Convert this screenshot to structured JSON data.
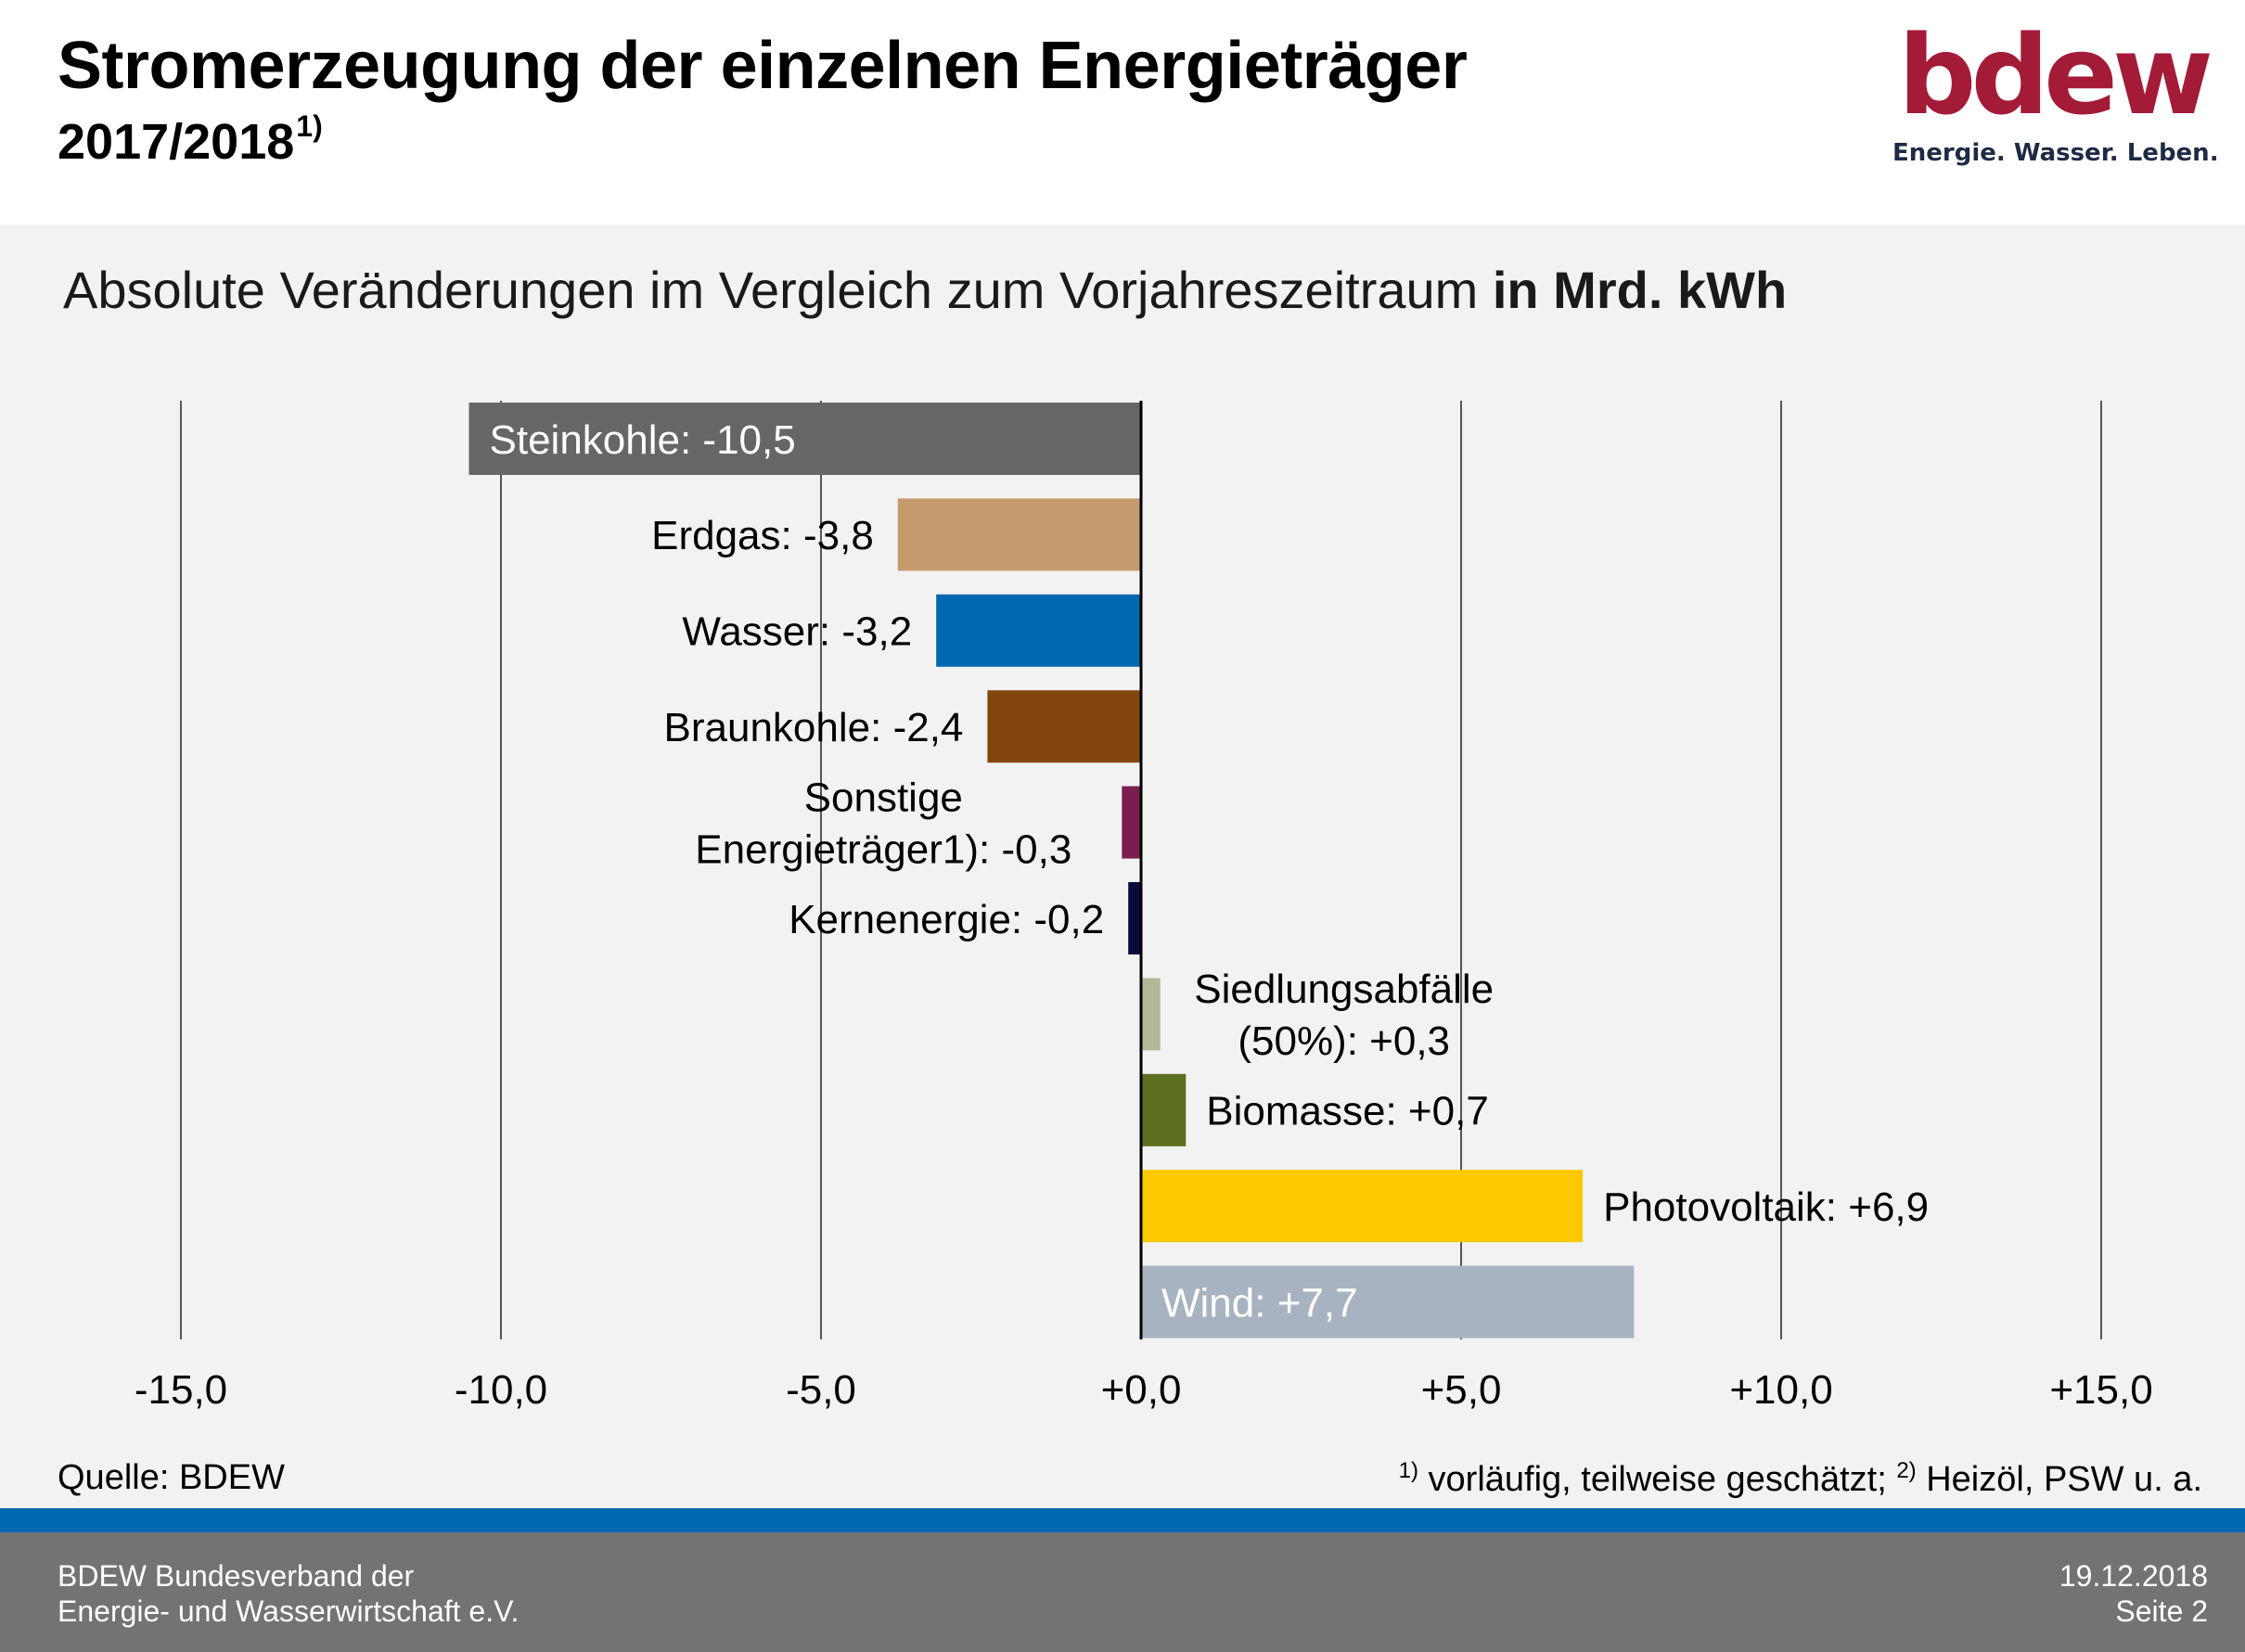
{
  "header": {
    "title": "Stromerzeugung der einzelnen Energieträger",
    "subtitle": "2017/2018",
    "subtitle_footnote": "1)",
    "logo_word": "bdew",
    "logo_tagline": "Energie. Wasser. Leben."
  },
  "caption": {
    "text": "Absolute Veränderungen im Vergleich zum Vorjahreszeitraum ",
    "unit": "in Mrd. kWh"
  },
  "chart_data": {
    "type": "bar",
    "orientation": "horizontal",
    "categories": [
      "Steinkohle: -10,5",
      "Erdgas: -3,8",
      "Wasser: -3,2",
      "Braunkohle: -2,4",
      "Sonstige Energieträger1): -0,3",
      "Kernenergie: -0,2",
      "Siedlungsabfälle (50%): +0,3",
      "Biomasse: +0,7",
      "Photovoltaik: +6,9",
      "Wind: +7,7"
    ],
    "values": [
      -10.5,
      -3.8,
      -3.2,
      -2.4,
      -0.3,
      -0.2,
      0.3,
      0.7,
      6.9,
      7.7
    ],
    "label_lines": [
      [
        "Steinkohle: -10,5"
      ],
      [
        "Erdgas: -3,8"
      ],
      [
        "Wasser: -3,2"
      ],
      [
        "Braunkohle: -2,4"
      ],
      [
        "Sonstige",
        "Energieträger1): -0,3"
      ],
      [
        "Kernenergie: -0,2"
      ],
      [
        "Siedlungsabfälle",
        "(50%): +0,3"
      ],
      [
        "Biomasse: +0,7"
      ],
      [
        "Photovoltaik: +6,9"
      ],
      [
        "Wind: +7,7"
      ]
    ],
    "colors": [
      "#666666",
      "#c59a6c",
      "#0067b1",
      "#83460d",
      "#7b1e4f",
      "#0a0a3c",
      "#b3b996",
      "#5e6e20",
      "#fdc900",
      "#a7b3c1"
    ],
    "x_ticks": [
      -15,
      -10,
      -5,
      0,
      5,
      10,
      15
    ],
    "x_tick_labels": [
      "-15,0",
      "-10,0",
      "-5,0",
      "+0,0",
      "+5,0",
      "+10,0",
      "+15,0"
    ],
    "xlim": [
      -15,
      15
    ],
    "grid": "vertical",
    "xlabel": "",
    "ylabel": ""
  },
  "source": "Quelle: BDEW",
  "footnote": {
    "mark1": "1)",
    "text1": " vorläufig, teilweise geschätzt; ",
    "mark2": "2)",
    "text2": " Heizöl, PSW u. a."
  },
  "footer": {
    "org_line1": "BDEW Bundesverband der",
    "org_line2": "Energie- und Wasserwirtschaft e.V.",
    "date": "19.12.2018",
    "page": "Seite 2"
  }
}
